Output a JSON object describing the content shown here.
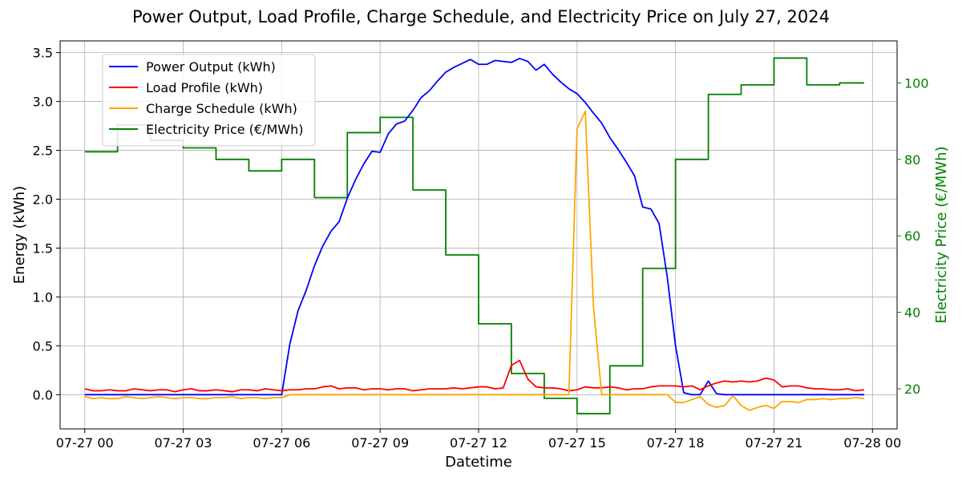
{
  "chart_data": {
    "type": "line",
    "title": "Power Output, Load Profile, Charge Schedule, and Electricity Price on July 27, 2024",
    "xlabel": "Datetime",
    "ylabel": "Energy (kWh)",
    "y2label": "Electricity Price (€/MWh)",
    "xlim": [
      -0.75,
      24.75
    ],
    "ylim": [
      -0.35,
      3.62
    ],
    "y2lim": [
      9.5,
      111
    ],
    "x_ticks": [
      0,
      3,
      6,
      9,
      12,
      15,
      18,
      21,
      24
    ],
    "x_tick_labels": [
      "07-27 00",
      "07-27 03",
      "07-27 06",
      "07-27 09",
      "07-27 12",
      "07-27 15",
      "07-27 18",
      "07-27 21",
      "07-28 00"
    ],
    "y_ticks": [
      0.0,
      0.5,
      1.0,
      1.5,
      2.0,
      2.5,
      3.0,
      3.5
    ],
    "y_tick_labels": [
      "0.0",
      "0.5",
      "1.0",
      "1.5",
      "2.0",
      "2.5",
      "3.0",
      "3.5"
    ],
    "y2_ticks": [
      20,
      40,
      60,
      80,
      100
    ],
    "y2_tick_labels": [
      "20",
      "40",
      "60",
      "80",
      "100"
    ],
    "grid": true,
    "legend_position": "top-left",
    "x_hours": [
      0,
      0.25,
      0.5,
      0.75,
      1,
      1.25,
      1.5,
      1.75,
      2,
      2.25,
      2.5,
      2.75,
      3,
      3.25,
      3.5,
      3.75,
      4,
      4.25,
      4.5,
      4.75,
      5,
      5.25,
      5.5,
      5.75,
      6,
      6.25,
      6.5,
      6.75,
      7,
      7.25,
      7.5,
      7.75,
      8,
      8.25,
      8.5,
      8.75,
      9,
      9.25,
      9.5,
      9.75,
      10,
      10.25,
      10.5,
      10.75,
      11,
      11.25,
      11.5,
      11.75,
      12,
      12.25,
      12.5,
      12.75,
      13,
      13.25,
      13.5,
      13.75,
      14,
      14.25,
      14.5,
      14.75,
      15,
      15.25,
      15.5,
      15.75,
      16,
      16.25,
      16.5,
      16.75,
      17,
      17.25,
      17.5,
      17.75,
      18,
      18.25,
      18.5,
      18.75,
      19,
      19.25,
      19.5,
      19.75,
      20,
      20.25,
      20.5,
      20.75,
      21,
      21.25,
      21.5,
      21.75,
      22,
      22.25,
      22.5,
      22.75,
      23,
      23.25,
      23.5,
      23.75
    ],
    "series": [
      {
        "name": "Power Output (kWh)",
        "color": "#0000ff",
        "axis": "left",
        "values": [
          0,
          0,
          0,
          0,
          0,
          0,
          0,
          0,
          0,
          0,
          0,
          0,
          0,
          0,
          0,
          0,
          0,
          0,
          0,
          0,
          0,
          0,
          0,
          0,
          0,
          0.52,
          0.86,
          1.07,
          1.32,
          1.52,
          1.67,
          1.77,
          2.01,
          2.2,
          2.36,
          2.49,
          2.48,
          2.67,
          2.77,
          2.8,
          2.91,
          3.04,
          3.11,
          3.21,
          3.3,
          3.35,
          3.39,
          3.43,
          3.38,
          3.38,
          3.42,
          3.41,
          3.4,
          3.44,
          3.41,
          3.32,
          3.38,
          3.28,
          3.2,
          3.13,
          3.08,
          2.99,
          2.88,
          2.78,
          2.63,
          2.51,
          2.38,
          2.24,
          1.92,
          1.9,
          1.75,
          1.2,
          0.5,
          0.02,
          0,
          0,
          0.14,
          0.01,
          0,
          0,
          0,
          0,
          0,
          0,
          0,
          0,
          0,
          0,
          0,
          0,
          0,
          0,
          0,
          0,
          0,
          0
        ]
      },
      {
        "name": "Load Profile (kWh)",
        "color": "#ff0000",
        "axis": "left",
        "values": [
          0.06,
          0.04,
          0.04,
          0.05,
          0.04,
          0.04,
          0.06,
          0.05,
          0.04,
          0.05,
          0.05,
          0.03,
          0.05,
          0.06,
          0.04,
          0.04,
          0.05,
          0.04,
          0.03,
          0.05,
          0.05,
          0.04,
          0.06,
          0.05,
          0.04,
          0.05,
          0.05,
          0.06,
          0.06,
          0.08,
          0.09,
          0.06,
          0.07,
          0.07,
          0.05,
          0.06,
          0.06,
          0.05,
          0.06,
          0.06,
          0.04,
          0.05,
          0.06,
          0.06,
          0.06,
          0.07,
          0.06,
          0.07,
          0.08,
          0.08,
          0.06,
          0.07,
          0.3,
          0.35,
          0.16,
          0.08,
          0.07,
          0.07,
          0.06,
          0.04,
          0.05,
          0.08,
          0.07,
          0.07,
          0.08,
          0.07,
          0.05,
          0.06,
          0.06,
          0.08,
          0.09,
          0.09,
          0.09,
          0.08,
          0.09,
          0.05,
          0.09,
          0.12,
          0.14,
          0.13,
          0.14,
          0.13,
          0.14,
          0.17,
          0.15,
          0.08,
          0.09,
          0.09,
          0.07,
          0.06,
          0.06,
          0.05,
          0.05,
          0.06,
          0.04,
          0.05
        ]
      },
      {
        "name": "Charge Schedule (kWh)",
        "color": "#ffa500",
        "axis": "left",
        "values": [
          -0.02,
          -0.04,
          -0.03,
          -0.04,
          -0.04,
          -0.02,
          -0.03,
          -0.04,
          -0.03,
          -0.02,
          -0.03,
          -0.04,
          -0.03,
          -0.03,
          -0.04,
          -0.04,
          -0.03,
          -0.03,
          -0.02,
          -0.04,
          -0.03,
          -0.03,
          -0.04,
          -0.03,
          -0.03,
          0,
          0,
          0,
          0,
          0,
          0,
          0,
          0,
          0,
          0,
          0,
          0,
          0,
          0,
          0,
          0,
          0,
          0,
          0,
          0,
          0,
          0,
          0,
          0,
          0,
          0,
          0,
          0,
          0,
          0,
          0,
          0,
          0,
          0,
          0,
          2.72,
          2.9,
          0.9,
          0,
          0,
          0,
          0,
          0,
          0,
          0,
          0,
          0,
          -0.08,
          -0.08,
          -0.05,
          -0.02,
          -0.1,
          -0.13,
          -0.11,
          -0.01,
          -0.11,
          -0.16,
          -0.13,
          -0.11,
          -0.14,
          -0.07,
          -0.07,
          -0.08,
          -0.05,
          -0.05,
          -0.04,
          -0.05,
          -0.04,
          -0.04,
          -0.03,
          -0.04
        ]
      },
      {
        "name": "Electricity Price (€/MWh)",
        "color": "#008000",
        "axis": "right",
        "step": true,
        "values": [
          82,
          82,
          82,
          82,
          89,
          89,
          89,
          89,
          85,
          85,
          85,
          85,
          83,
          83,
          83,
          83,
          80,
          80,
          80,
          80,
          77,
          77,
          77,
          77,
          80,
          80,
          80,
          80,
          70,
          70,
          70,
          70,
          87,
          87,
          87,
          87,
          91,
          91,
          91,
          91,
          72,
          72,
          72,
          72,
          55,
          55,
          55,
          55,
          37,
          37,
          37,
          37,
          24,
          24,
          24,
          24,
          17.5,
          17.5,
          17.5,
          17.5,
          13.5,
          13.5,
          13.5,
          13.5,
          26,
          26,
          26,
          26,
          51.5,
          51.5,
          51.5,
          51.5,
          80,
          80,
          80,
          80,
          97,
          97,
          97,
          97,
          99.5,
          99.5,
          99.5,
          99.5,
          106.5,
          106.5,
          106.5,
          106.5,
          99.5,
          99.5,
          99.5,
          99.5,
          100,
          100,
          100,
          100
        ]
      }
    ]
  }
}
